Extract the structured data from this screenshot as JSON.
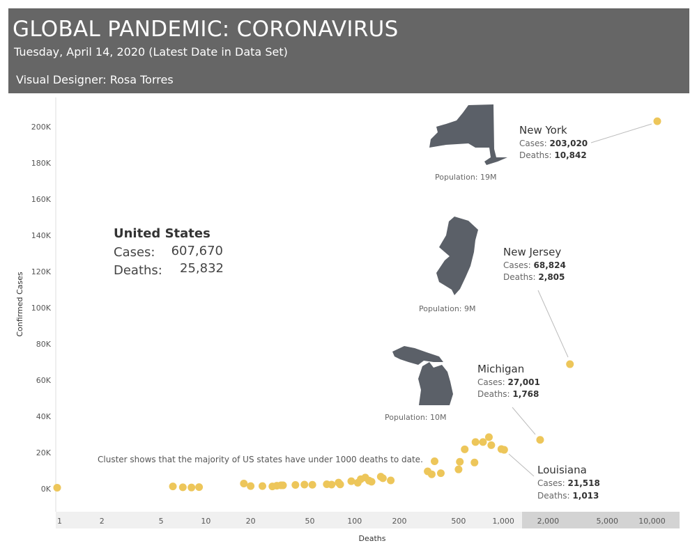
{
  "header": {
    "title": "GLOBAL PANDEMIC: CORONAVIRUS",
    "subtitle": "Tuesday, April 14, 2020 (Latest Date in Data Set)",
    "designer": "Visual Designer: Rosa Torres"
  },
  "colors": {
    "banner": "#666666",
    "point": "#EDC65A",
    "silhouette": "#5B6068",
    "axis_band_high": "#d3d3d3",
    "axis_band_low": "#f0f0f0"
  },
  "summary": {
    "title": "United States",
    "cases_label": "Cases:",
    "cases_value": "607,670",
    "deaths_label": "Deaths:",
    "deaths_value": "25,832"
  },
  "note": "Cluster shows that the majority of US states have under 1000 deaths to date.",
  "chart_data": {
    "type": "scatter",
    "xlabel": "Deaths",
    "ylabel": "Confirmed Cases",
    "x_scale": "log",
    "xlim": [
      1,
      14000
    ],
    "ylim": [
      -12000,
      215000
    ],
    "x_ticks": [
      {
        "value": 1,
        "label": "1"
      },
      {
        "value": 2,
        "label": "2"
      },
      {
        "value": 5,
        "label": "5"
      },
      {
        "value": 10,
        "label": "10"
      },
      {
        "value": 20,
        "label": "20"
      },
      {
        "value": 50,
        "label": "50"
      },
      {
        "value": 100,
        "label": "100"
      },
      {
        "value": 200,
        "label": "200"
      },
      {
        "value": 500,
        "label": "500"
      },
      {
        "value": 1000,
        "label": "1,000"
      },
      {
        "value": 2000,
        "label": "2,000"
      },
      {
        "value": 5000,
        "label": "5,000"
      },
      {
        "value": 10000,
        "label": "10,000"
      }
    ],
    "y_ticks": [
      {
        "value": 0,
        "label": "0K"
      },
      {
        "value": 20000,
        "label": "20K"
      },
      {
        "value": 40000,
        "label": "40K"
      },
      {
        "value": 60000,
        "label": "60K"
      },
      {
        "value": 80000,
        "label": "80K"
      },
      {
        "value": 100000,
        "label": "100K"
      },
      {
        "value": 120000,
        "label": "120K"
      },
      {
        "value": 140000,
        "label": "140K"
      },
      {
        "value": 160000,
        "label": "160K"
      },
      {
        "value": 180000,
        "label": "180K"
      },
      {
        "value": 200000,
        "label": "200K"
      }
    ],
    "points": [
      {
        "x": 1,
        "y": 600
      },
      {
        "x": 6,
        "y": 1300
      },
      {
        "x": 7,
        "y": 800
      },
      {
        "x": 8,
        "y": 700
      },
      {
        "x": 9,
        "y": 900
      },
      {
        "x": 18,
        "y": 2900
      },
      {
        "x": 20,
        "y": 1500
      },
      {
        "x": 24,
        "y": 1500
      },
      {
        "x": 28,
        "y": 1300
      },
      {
        "x": 30,
        "y": 1700
      },
      {
        "x": 32,
        "y": 1900
      },
      {
        "x": 33,
        "y": 1900
      },
      {
        "x": 40,
        "y": 2100
      },
      {
        "x": 46,
        "y": 2300
      },
      {
        "x": 52,
        "y": 2200
      },
      {
        "x": 65,
        "y": 2500
      },
      {
        "x": 70,
        "y": 2300
      },
      {
        "x": 78,
        "y": 3400
      },
      {
        "x": 80,
        "y": 2400
      },
      {
        "x": 95,
        "y": 4200
      },
      {
        "x": 105,
        "y": 3300
      },
      {
        "x": 110,
        "y": 5300
      },
      {
        "x": 118,
        "y": 6200
      },
      {
        "x": 125,
        "y": 4500
      },
      {
        "x": 130,
        "y": 3900
      },
      {
        "x": 150,
        "y": 6700
      },
      {
        "x": 155,
        "y": 5800
      },
      {
        "x": 175,
        "y": 4600
      },
      {
        "x": 310,
        "y": 9600
      },
      {
        "x": 330,
        "y": 8000
      },
      {
        "x": 345,
        "y": 15200
      },
      {
        "x": 380,
        "y": 8600
      },
      {
        "x": 500,
        "y": 10700
      },
      {
        "x": 510,
        "y": 14900
      },
      {
        "x": 550,
        "y": 21800
      },
      {
        "x": 640,
        "y": 14500
      },
      {
        "x": 650,
        "y": 25800
      },
      {
        "x": 730,
        "y": 25800
      },
      {
        "x": 800,
        "y": 28500
      },
      {
        "x": 830,
        "y": 24100
      },
      {
        "x": 970,
        "y": 21900
      },
      {
        "x": 1013,
        "y": 21518
      },
      {
        "x": 1768,
        "y": 27001
      },
      {
        "x": 2805,
        "y": 68824
      },
      {
        "x": 10842,
        "y": 203020
      }
    ],
    "annotations": [
      {
        "name": "New York",
        "cases_label": "Cases:",
        "cases": "203,020",
        "deaths_label": "Deaths:",
        "deaths": "10,842",
        "population": "Population: 19M"
      },
      {
        "name": "New Jersey",
        "cases_label": "Cases:",
        "cases": "68,824",
        "deaths_label": "Deaths:",
        "deaths": "2,805",
        "population": "Population: 9M"
      },
      {
        "name": "Michigan",
        "cases_label": "Cases:",
        "cases": "27,001",
        "deaths_label": "Deaths:",
        "deaths": "1,768",
        "population": "Population: 10M"
      },
      {
        "name": "Louisiana",
        "cases_label": "Cases:",
        "cases": "21,518",
        "deaths_label": "Deaths:",
        "deaths": "1,013",
        "population": ""
      }
    ]
  }
}
